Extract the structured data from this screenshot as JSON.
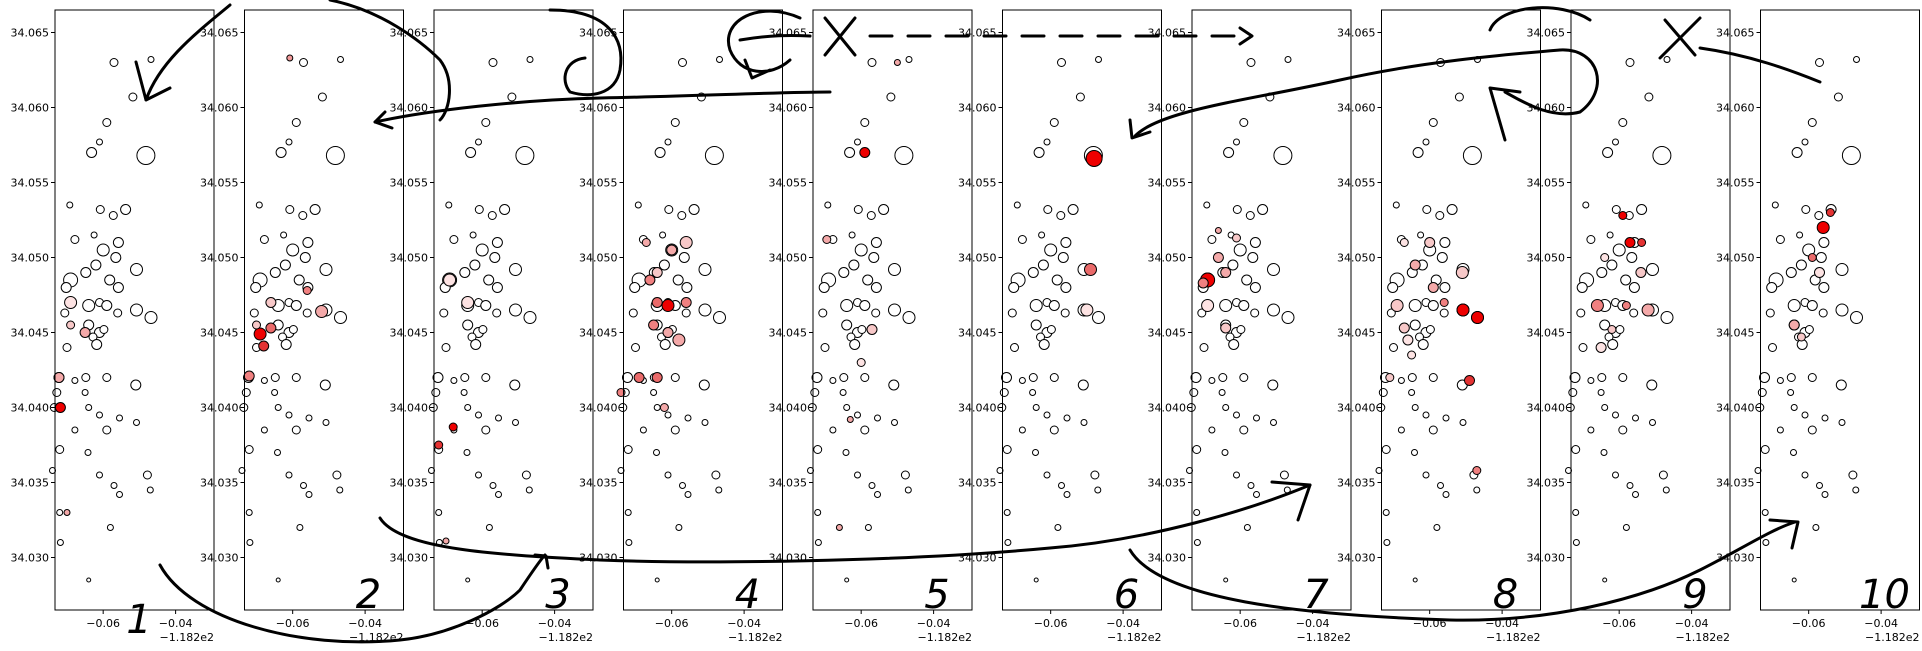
{
  "chart_data": {
    "type": "scatter",
    "panel_labels": [
      "1",
      "2",
      "3",
      "4",
      "5",
      "6",
      "7",
      "8",
      "9",
      "10"
    ],
    "x_ticks": [
      "−0.06",
      "−0.04"
    ],
    "x_offset": "−1.182e2",
    "y_ticks": [
      "34.030",
      "34.035",
      "34.040",
      "34.045",
      "34.050",
      "34.055",
      "34.060",
      "34.065"
    ],
    "xlim": [
      -118.2733,
      -118.2294
    ],
    "ylim": [
      34.0265,
      34.0665
    ],
    "grid": false,
    "points": [
      [
        -118.2468,
        34.0632,
        3
      ],
      [
        -118.257,
        34.063,
        4
      ],
      [
        -118.2518,
        34.0607,
        4
      ],
      [
        -118.259,
        34.059,
        4
      ],
      [
        -118.261,
        34.0577,
        3
      ],
      [
        -118.2632,
        34.057,
        5
      ],
      [
        -118.2482,
        34.0568,
        9
      ],
      [
        -118.2692,
        34.0535,
        3
      ],
      [
        -118.2608,
        34.0532,
        4
      ],
      [
        -118.2572,
        34.0528,
        4
      ],
      [
        -118.2538,
        34.0532,
        5
      ],
      [
        -118.2625,
        34.0515,
        3
      ],
      [
        -118.2558,
        34.051,
        5
      ],
      [
        -118.2678,
        34.0512,
        4
      ],
      [
        -118.26,
        34.0505,
        6
      ],
      [
        -118.2565,
        34.05,
        5
      ],
      [
        -118.262,
        34.0495,
        5
      ],
      [
        -118.2648,
        34.049,
        5
      ],
      [
        -118.2508,
        34.0492,
        6
      ],
      [
        -118.2582,
        34.0485,
        5
      ],
      [
        -118.2558,
        34.048,
        5
      ],
      [
        -118.269,
        34.0485,
        7
      ],
      [
        -118.2702,
        34.048,
        5
      ],
      [
        -118.261,
        34.047,
        4
      ],
      [
        -118.264,
        34.0468,
        6
      ],
      [
        -118.259,
        34.0468,
        5
      ],
      [
        -118.256,
        34.0463,
        4
      ],
      [
        -118.2706,
        34.0463,
        4
      ],
      [
        -118.2508,
        34.0465,
        6
      ],
      [
        -118.2468,
        34.046,
        6
      ],
      [
        -118.264,
        34.0455,
        5
      ],
      [
        -118.261,
        34.045,
        5
      ],
      [
        -118.2628,
        34.0447,
        4
      ],
      [
        -118.2618,
        34.0442,
        5
      ],
      [
        -118.2598,
        34.0452,
        4
      ],
      [
        -118.27,
        34.044,
        4
      ],
      [
        -118.2648,
        34.042,
        4
      ],
      [
        -118.2722,
        34.042,
        5
      ],
      [
        -118.2678,
        34.0418,
        3
      ],
      [
        -118.259,
        34.042,
        4
      ],
      [
        -118.251,
        34.0415,
        5
      ],
      [
        -118.2728,
        34.041,
        4
      ],
      [
        -118.265,
        34.041,
        3
      ],
      [
        -118.264,
        34.04,
        3
      ],
      [
        -118.261,
        34.0395,
        3
      ],
      [
        -118.2735,
        34.04,
        4
      ],
      [
        -118.2555,
        34.0393,
        3
      ],
      [
        -118.259,
        34.0385,
        4
      ],
      [
        -118.2678,
        34.0385,
        3
      ],
      [
        -118.2508,
        34.039,
        3
      ],
      [
        -118.272,
        34.0372,
        4
      ],
      [
        -118.2642,
        34.037,
        3
      ],
      [
        -118.261,
        34.0355,
        3
      ],
      [
        -118.274,
        34.0358,
        3
      ],
      [
        -118.2478,
        34.0355,
        4
      ],
      [
        -118.257,
        34.0348,
        3
      ],
      [
        -118.247,
        34.0345,
        3
      ],
      [
        -118.272,
        34.033,
        3
      ],
      [
        -118.2555,
        34.0342,
        3
      ],
      [
        -118.258,
        34.032,
        3
      ],
      [
        -118.2718,
        34.031,
        3
      ],
      [
        -118.264,
        34.0285,
        2
      ]
    ],
    "highlights": [
      [
        [
          -118.2718,
          34.04,
          5,
          "#ee0000"
        ],
        [
          -118.2722,
          34.042,
          5,
          "#f4a9a9"
        ],
        [
          -118.27,
          34.033,
          3,
          "#f4a9a9"
        ],
        [
          -118.269,
          34.0455,
          4,
          "#f7c8c8"
        ],
        [
          -118.265,
          34.045,
          5,
          "#f4a9a9"
        ],
        [
          -118.269,
          34.047,
          6,
          "#fde3e3"
        ]
      ],
      [
        [
          -118.269,
          34.0449,
          6,
          "#ee0000"
        ],
        [
          -118.268,
          34.0441,
          5,
          "#e43333"
        ],
        [
          -118.266,
          34.0453,
          5,
          "#ea6a6a"
        ],
        [
          -118.272,
          34.0421,
          5,
          "#f08080"
        ],
        [
          -118.252,
          34.0464,
          6,
          "#f4a9a9"
        ],
        [
          -118.2608,
          34.0633,
          3,
          "#f29a9a"
        ],
        [
          -118.256,
          34.0478,
          4,
          "#f08080"
        ],
        [
          -118.266,
          34.047,
          5,
          "#f7c8c8"
        ],
        [
          -118.27,
          34.0455,
          4,
          "#f7c8c8"
        ]
      ],
      [
        [
          -118.268,
          34.0387,
          4,
          "#ee0000"
        ],
        [
          -118.272,
          34.0375,
          4,
          "#e43333"
        ],
        [
          -118.27,
          34.0311,
          3,
          "#f4a9a9"
        ],
        [
          -118.264,
          34.047,
          6,
          "#fde3e3"
        ],
        [
          -118.269,
          34.0485,
          6,
          "#fde3e3"
        ]
      ],
      [
        [
          -118.261,
          34.0468,
          6,
          "#ee0000"
        ],
        [
          -118.264,
          34.047,
          5,
          "#ea6a6a"
        ],
        [
          -118.266,
          34.0485,
          5,
          "#f08080"
        ],
        [
          -118.265,
          34.0455,
          5,
          "#f08080"
        ],
        [
          -118.264,
          34.042,
          5,
          "#ea6a6a"
        ],
        [
          -118.269,
          34.042,
          5,
          "#ea6a6a"
        ],
        [
          -118.258,
          34.0445,
          6,
          "#f4a9a9"
        ],
        [
          -118.256,
          34.047,
          5,
          "#f08080"
        ],
        [
          -118.256,
          34.051,
          6,
          "#f7c8c8"
        ],
        [
          -118.26,
          34.0505,
          5,
          "#f4a9a9"
        ],
        [
          -118.267,
          34.051,
          4,
          "#f4a9a9"
        ],
        [
          -118.262,
          34.04,
          4,
          "#f4a9a9"
        ],
        [
          -118.274,
          34.041,
          4,
          "#f08080"
        ],
        [
          -118.261,
          34.045,
          5,
          "#f4a9a9"
        ],
        [
          -118.264,
          34.049,
          5,
          "#f7c8c8"
        ]
      ],
      [
        [
          -118.259,
          34.057,
          5,
          "#ee0000"
        ],
        [
          -118.2695,
          34.0512,
          4,
          "#f4a9a9"
        ],
        [
          -118.257,
          34.0452,
          5,
          "#f7c8c8"
        ],
        [
          -118.26,
          34.043,
          4,
          "#fde3e3"
        ],
        [
          -118.263,
          34.0392,
          3,
          "#f4a9a9"
        ],
        [
          -118.266,
          34.032,
          3,
          "#f4a9a9"
        ],
        [
          -118.25,
          34.063,
          3,
          "#f4a9a9"
        ]
      ],
      [
        [
          -118.248,
          34.0566,
          8,
          "#ee0000"
        ],
        [
          -118.249,
          34.0492,
          6,
          "#ea6a6a"
        ],
        [
          -118.25,
          34.0465,
          6,
          "#fde3e3"
        ]
      ],
      [
        [
          -118.269,
          34.0485,
          7,
          "#ee0000"
        ],
        [
          -118.2702,
          34.0483,
          5,
          "#f08080"
        ],
        [
          -118.266,
          34.05,
          5,
          "#f4a9a9"
        ],
        [
          -118.264,
          34.049,
          5,
          "#f4a9a9"
        ],
        [
          -118.269,
          34.0468,
          6,
          "#fde3e3"
        ],
        [
          -118.264,
          34.0453,
          5,
          "#f7c8c8"
        ],
        [
          -118.261,
          34.0513,
          4,
          "#f7c8c8"
        ],
        [
          -118.266,
          34.0518,
          3,
          "#f4a9a9"
        ]
      ],
      [
        [
          -118.2508,
          34.0465,
          6,
          "#ee0000"
        ],
        [
          -118.2468,
          34.046,
          6,
          "#ee0000"
        ],
        [
          -118.249,
          34.0418,
          5,
          "#e43333"
        ],
        [
          -118.247,
          34.0358,
          4,
          "#f08080"
        ],
        [
          -118.256,
          34.047,
          4,
          "#f08080"
        ],
        [
          -118.259,
          34.048,
          5,
          "#f4a9a9"
        ],
        [
          -118.264,
          34.0495,
          5,
          "#f4a9a9"
        ],
        [
          -118.26,
          34.051,
          5,
          "#f7c8c8"
        ],
        [
          -118.269,
          34.0468,
          6,
          "#f7c8c8"
        ],
        [
          -118.267,
          34.0453,
          5,
          "#f7c8c8"
        ],
        [
          -118.266,
          34.0445,
          5,
          "#fde3e3"
        ],
        [
          -118.265,
          34.0435,
          4,
          "#fde3e3"
        ],
        [
          -118.271,
          34.042,
          4,
          "#f7c8c8"
        ],
        [
          -118.251,
          34.049,
          6,
          "#f7c8c8"
        ],
        [
          -118.267,
          34.051,
          4,
          "#fde3e3"
        ]
      ],
      [
        [
          -118.259,
          34.0528,
          4,
          "#ee0000"
        ],
        [
          -118.257,
          34.051,
          5,
          "#ee0000"
        ],
        [
          -118.2538,
          34.051,
          4,
          "#e43333"
        ],
        [
          -118.266,
          34.0468,
          6,
          "#f08080"
        ],
        [
          -118.258,
          34.0468,
          4,
          "#f08080"
        ],
        [
          -118.252,
          34.0465,
          6,
          "#f4a9a9"
        ],
        [
          -118.254,
          34.049,
          5,
          "#f7c8c8"
        ],
        [
          -118.264,
          34.05,
          4,
          "#fde3e3"
        ],
        [
          -118.262,
          34.0452,
          4,
          "#f7c8c8"
        ],
        [
          -118.265,
          34.044,
          5,
          "#fde3e3"
        ]
      ],
      [
        [
          -118.256,
          34.052,
          6,
          "#ee0000"
        ],
        [
          -118.254,
          34.053,
          4,
          "#e43333"
        ],
        [
          -118.259,
          34.05,
          4,
          "#ea6a6a"
        ],
        [
          -118.264,
          34.0455,
          5,
          "#f4a9a9"
        ],
        [
          -118.262,
          34.0447,
          4,
          "#f7c8c8"
        ],
        [
          -118.257,
          34.049,
          5,
          "#fde3e3"
        ]
      ]
    ]
  }
}
